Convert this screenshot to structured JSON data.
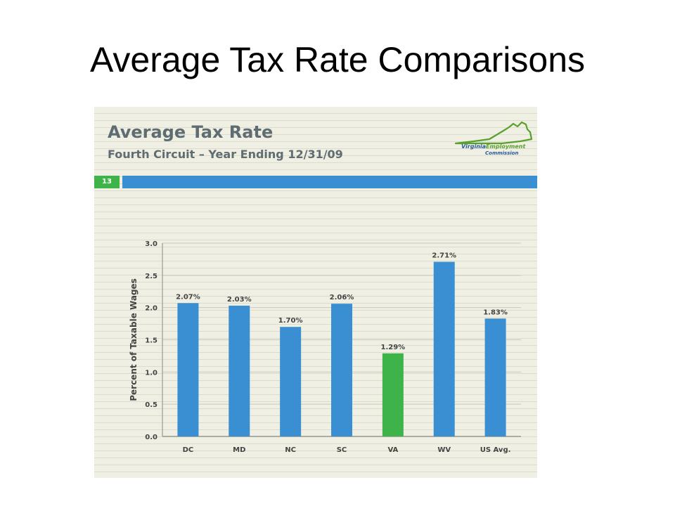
{
  "slide": {
    "title": "Average Tax Rate Comparisons"
  },
  "panel": {
    "title": "Average Tax Rate",
    "subtitle": "Fourth Circuit – Year Ending 12/31/09",
    "page_number": "13",
    "logo": {
      "line1_part1": "Virginia",
      "line1_part2": "Employment",
      "line2": "Commission"
    }
  },
  "colors": {
    "bar_default": "#3a8fd2",
    "bar_highlight": "#3db34a",
    "band_blue": "#3a8fd2",
    "band_green": "#3db34a",
    "panel_bg": "#efefe3"
  },
  "chart_data": {
    "type": "bar",
    "categories": [
      "DC",
      "MD",
      "NC",
      "SC",
      "VA",
      "WV",
      "US Avg."
    ],
    "values": [
      2.07,
      2.03,
      1.7,
      2.06,
      1.29,
      2.71,
      1.83
    ],
    "data_labels": [
      "2.07%",
      "2.03%",
      "1.70%",
      "2.06%",
      "1.29%",
      "2.71%",
      "1.83%"
    ],
    "highlight_category": "VA",
    "xlabel": "",
    "ylabel": "Percent of Taxable Wages",
    "ylim": [
      0,
      3.0
    ],
    "yticks": [
      0.0,
      0.5,
      1.0,
      1.5,
      2.0,
      2.5,
      3.0
    ],
    "ytick_labels": [
      "0.0",
      "0.5",
      "1.0",
      "1.5",
      "2.0",
      "2.5",
      "3.0"
    ],
    "grid": true,
    "legend": "none"
  }
}
